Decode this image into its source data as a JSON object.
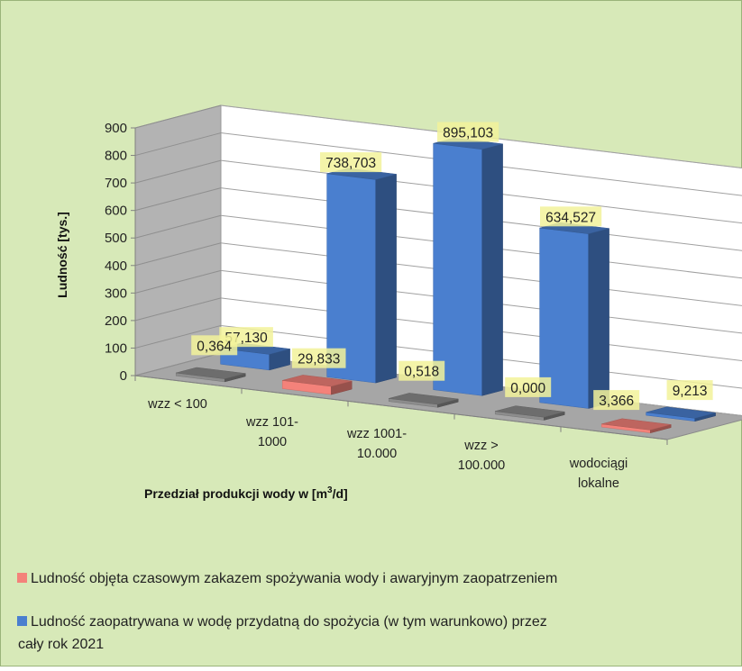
{
  "chart_data": {
    "type": "bar",
    "subtype": "3d-column",
    "ylabel": "Ludność [tys.]",
    "xlabel": "Przedział produkcji wody w [m³/d]",
    "ylim": [
      0,
      900
    ],
    "ytick_step": 100,
    "yticks": [
      "0",
      "100",
      "200",
      "300",
      "400",
      "500",
      "600",
      "700",
      "800",
      "900"
    ],
    "grid": true,
    "categories": [
      [
        "wzz < 100"
      ],
      [
        "wzz 101-",
        "1000"
      ],
      [
        "wzz 1001-",
        "10.000"
      ],
      [
        "wzz >",
        "100.000"
      ],
      [
        "wodociągi",
        "lokalne"
      ]
    ],
    "series": [
      {
        "name": "Ludność objęta czasowym zakazem spożywania wody i awaryjnym zaopatrzeniem",
        "color": "#f4827a",
        "values": [
          0.364,
          29.833,
          0.518,
          0.0,
          3.366
        ],
        "labels": [
          "0,364",
          "29,833",
          "0,518",
          "0,000",
          "3,366"
        ]
      },
      {
        "name": "Ludność zaopatrywana w wodę przydatną do spożycia (w tym warunkowo) przez cały rok 2021",
        "color": "#4a7fcf",
        "values": [
          57.13,
          738.703,
          895.103,
          634.527,
          9.213
        ],
        "labels": [
          "57,130",
          "738,703",
          "895,103",
          "634,527",
          "9,213"
        ]
      }
    ],
    "legend": {
      "position": "bottom",
      "lines": [
        [
          "Ludność objęta czasowym zakazem spożywania wody i awaryjnym zaopatrzeniem"
        ],
        [
          "Ludność zaopatrywana w wodę przydatną do spożycia (w tym warunkowo) przez",
          "cały rok 2021"
        ]
      ]
    },
    "colors": {
      "background": "#d7e9b8",
      "floor": "#a6a6a6",
      "back_wall": "#ffffff",
      "side_wall": "#b3b3b3",
      "label_bg": "#f2f29a",
      "grey_bar": "#8c8c8c"
    }
  }
}
